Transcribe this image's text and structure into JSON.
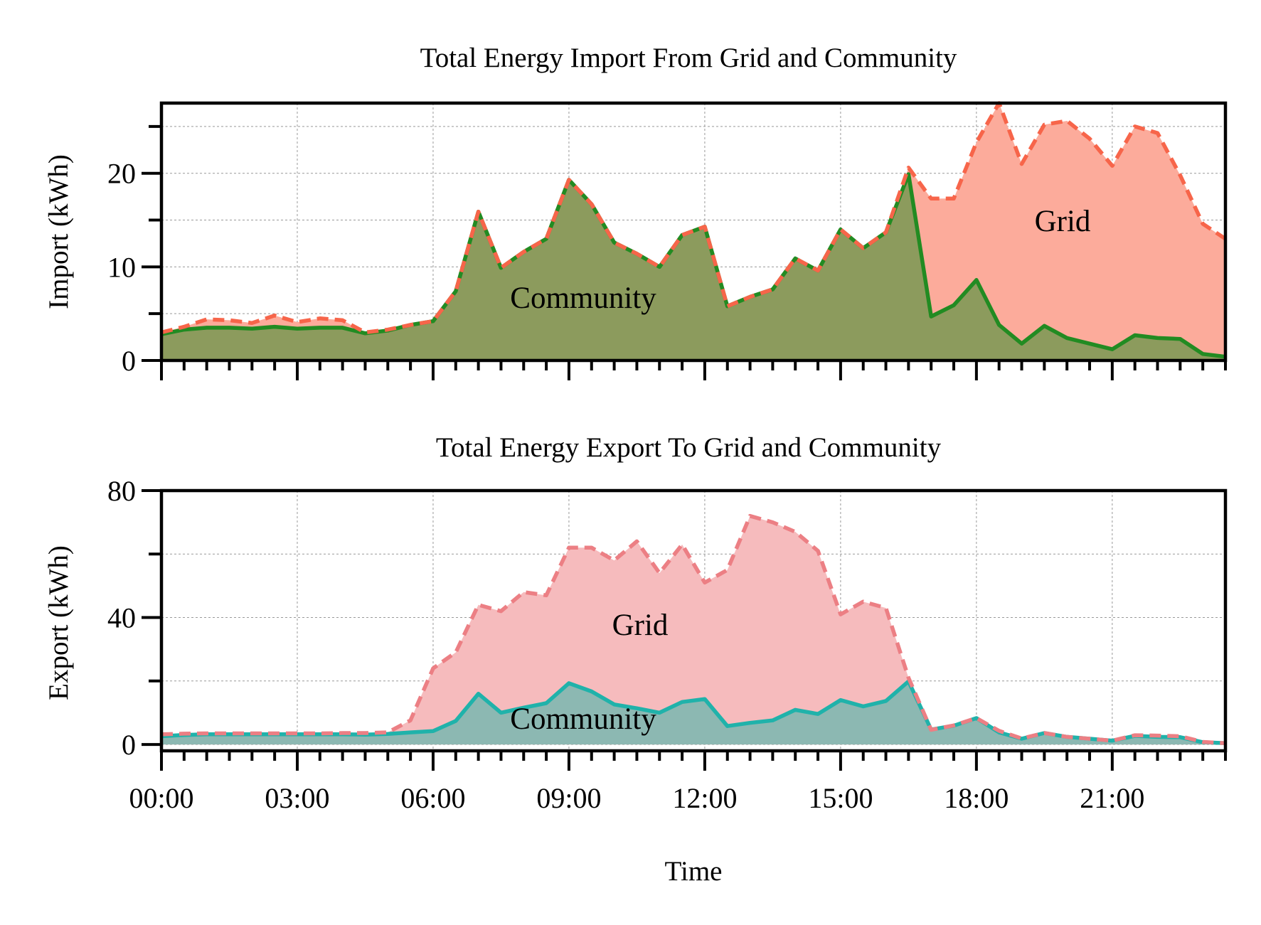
{
  "colors": {
    "import_grid_fill": "#fcab9b",
    "import_grid_line": "#f7654a",
    "import_community_fill": "#8c9b5d",
    "import_community_line": "#228b22",
    "export_grid_fill": "#f6bbbd",
    "export_grid_line": "#ec7f84",
    "export_community_fill": "#8cb8b2",
    "export_community_line": "#20b2aa",
    "grid_lines": "#999999"
  },
  "xlabel": "Time",
  "chart_data": [
    {
      "type": "area",
      "title": "Total Energy Import From Grid and Community",
      "ylabel": "Import (kWh)",
      "ylim": [
        0,
        27.5
      ],
      "yticks": [
        0,
        10,
        20
      ],
      "yticks_minor": [
        5,
        15,
        25
      ],
      "xlim": [
        "00:00",
        "23:30"
      ],
      "x": [
        "00:00",
        "00:30",
        "01:00",
        "01:30",
        "02:00",
        "02:30",
        "03:00",
        "03:30",
        "04:00",
        "04:30",
        "05:00",
        "05:30",
        "06:00",
        "06:30",
        "07:00",
        "07:30",
        "08:00",
        "08:30",
        "09:00",
        "09:30",
        "10:00",
        "10:30",
        "11:00",
        "11:30",
        "12:00",
        "12:30",
        "13:00",
        "13:30",
        "14:00",
        "14:30",
        "15:00",
        "15:30",
        "16:00",
        "16:30",
        "17:00",
        "17:30",
        "18:00",
        "18:30",
        "19:00",
        "19:30",
        "20:00",
        "20:30",
        "21:00",
        "21:30",
        "22:00",
        "22:30",
        "23:00",
        "23:30"
      ],
      "grid": true,
      "series": [
        {
          "name": "Grid",
          "style": "dashed",
          "values": [
            3.0,
            3.6,
            4.4,
            4.3,
            4.0,
            4.8,
            4.1,
            4.5,
            4.3,
            3.0,
            3.3,
            3.8,
            4.2,
            7.4,
            15.9,
            9.9,
            11.6,
            13.0,
            19.3,
            16.7,
            12.6,
            11.4,
            10.0,
            13.4,
            14.3,
            5.8,
            6.8,
            7.6,
            10.9,
            9.6,
            14.0,
            12.0,
            13.7,
            20.6,
            17.3,
            17.3,
            23.3,
            27.5,
            21.0,
            25.2,
            25.6,
            23.7,
            20.8,
            25.0,
            24.3,
            19.8,
            14.6,
            13.0
          ]
        },
        {
          "name": "Community",
          "style": "solid",
          "values": [
            2.8,
            3.3,
            3.5,
            3.5,
            3.4,
            3.6,
            3.4,
            3.5,
            3.5,
            2.9,
            3.2,
            3.8,
            4.2,
            7.4,
            15.9,
            9.9,
            11.6,
            13.0,
            19.3,
            16.7,
            12.6,
            11.4,
            10.0,
            13.4,
            14.3,
            5.8,
            6.8,
            7.6,
            10.9,
            9.6,
            14.0,
            12.0,
            13.7,
            19.9,
            4.7,
            5.9,
            8.6,
            3.8,
            1.8,
            3.7,
            2.4,
            1.8,
            1.2,
            2.7,
            2.4,
            2.3,
            0.7,
            0.4
          ]
        }
      ],
      "annotations": [
        "Community",
        "Grid"
      ]
    },
    {
      "type": "area",
      "title": "Total Energy Export To Grid and Community",
      "ylabel": "Export (kWh)",
      "ylim": [
        -2,
        80
      ],
      "yticks": [
        0,
        40,
        80
      ],
      "yticks_minor": [
        20,
        60
      ],
      "xlim": [
        "00:00",
        "23:30"
      ],
      "x": [
        "00:00",
        "00:30",
        "01:00",
        "01:30",
        "02:00",
        "02:30",
        "03:00",
        "03:30",
        "04:00",
        "04:30",
        "05:00",
        "05:30",
        "06:00",
        "06:30",
        "07:00",
        "07:30",
        "08:00",
        "08:30",
        "09:00",
        "09:30",
        "10:00",
        "10:30",
        "11:00",
        "11:30",
        "12:00",
        "12:30",
        "13:00",
        "13:30",
        "14:00",
        "14:30",
        "15:00",
        "15:30",
        "16:00",
        "16:30",
        "17:00",
        "17:30",
        "18:00",
        "18:30",
        "19:00",
        "19:30",
        "20:00",
        "20:30",
        "21:00",
        "21:30",
        "22:00",
        "22:30",
        "23:00",
        "23:30"
      ],
      "grid": true,
      "series": [
        {
          "name": "Grid",
          "style": "dashed",
          "values": [
            3.2,
            3.4,
            3.5,
            3.5,
            3.5,
            3.5,
            3.5,
            3.5,
            3.6,
            3.6,
            3.8,
            7.6,
            24.0,
            29.0,
            44.0,
            42.0,
            48.0,
            47.0,
            62.0,
            62.0,
            58.0,
            64.0,
            54.0,
            63.0,
            51.0,
            55.0,
            72.0,
            70.0,
            67.0,
            61.0,
            41.0,
            45.0,
            43.0,
            21.0,
            4.6,
            6.0,
            8.3,
            4.3,
            1.9,
            3.6,
            2.4,
            1.8,
            1.2,
            2.9,
            2.8,
            2.6,
            0.8,
            0.4
          ]
        },
        {
          "name": "Community",
          "style": "solid",
          "values": [
            2.6,
            3.0,
            3.2,
            3.2,
            3.2,
            3.2,
            3.2,
            3.2,
            3.2,
            3.1,
            3.3,
            3.8,
            4.2,
            7.4,
            16.0,
            10.0,
            11.6,
            13.0,
            19.3,
            16.7,
            12.6,
            11.4,
            10.0,
            13.4,
            14.3,
            5.8,
            6.8,
            7.6,
            10.9,
            9.6,
            14.0,
            12.0,
            13.7,
            19.9,
            4.7,
            5.9,
            8.3,
            3.8,
            1.8,
            3.6,
            2.4,
            1.8,
            1.2,
            2.7,
            2.4,
            2.3,
            0.7,
            0.4
          ]
        }
      ],
      "annotations": [
        "Community",
        "Grid"
      ]
    }
  ],
  "xticks": [
    "00:00",
    "03:00",
    "06:00",
    "09:00",
    "12:00",
    "15:00",
    "18:00",
    "21:00"
  ]
}
